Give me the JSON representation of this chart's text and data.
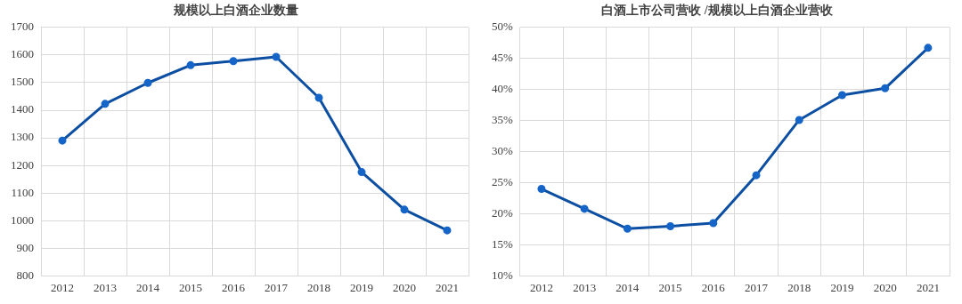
{
  "chart_data": [
    {
      "type": "line",
      "title": "规模以上白酒企业数量",
      "categories": [
        "2012",
        "2013",
        "2014",
        "2015",
        "2016",
        "2017",
        "2018",
        "2019",
        "2020",
        "2021"
      ],
      "series": [
        {
          "color": "#0b4ea2",
          "values": [
            1290,
            1423,
            1499,
            1563,
            1578,
            1593,
            1445,
            1176,
            1040,
            965
          ]
        }
      ],
      "ylim": [
        800,
        1700
      ],
      "yticks": [
        800,
        900,
        1000,
        1100,
        1200,
        1300,
        1400,
        1500,
        1600,
        1700
      ],
      "grid": true,
      "marker": "circle",
      "line_style": "solid"
    },
    {
      "type": "line",
      "title": "白酒上市公司营收 /规模以上白酒企业营收",
      "categories": [
        "2012",
        "2013",
        "2014",
        "2015",
        "2016",
        "2017",
        "2018",
        "2019",
        "2020",
        "2021"
      ],
      "series": [
        {
          "color": "#0b4ea2",
          "values": [
            24.0,
            20.8,
            17.6,
            18.0,
            18.5,
            26.2,
            35.1,
            39.1,
            40.2,
            46.7
          ]
        }
      ],
      "ylim": [
        10,
        50
      ],
      "yticks": [
        {
          "value": 10,
          "label": "10%"
        },
        {
          "value": 15,
          "label": "15%"
        },
        {
          "value": 20,
          "label": "20%"
        },
        {
          "value": 25,
          "label": "25%"
        },
        {
          "value": 30,
          "label": "30%"
        },
        {
          "value": 35,
          "label": "35%"
        },
        {
          "value": 40,
          "label": "40%"
        },
        {
          "value": 45,
          "label": "45%"
        },
        {
          "value": 50,
          "label": "50%"
        }
      ],
      "grid": true,
      "marker": "circle",
      "line_style": "solid"
    }
  ]
}
